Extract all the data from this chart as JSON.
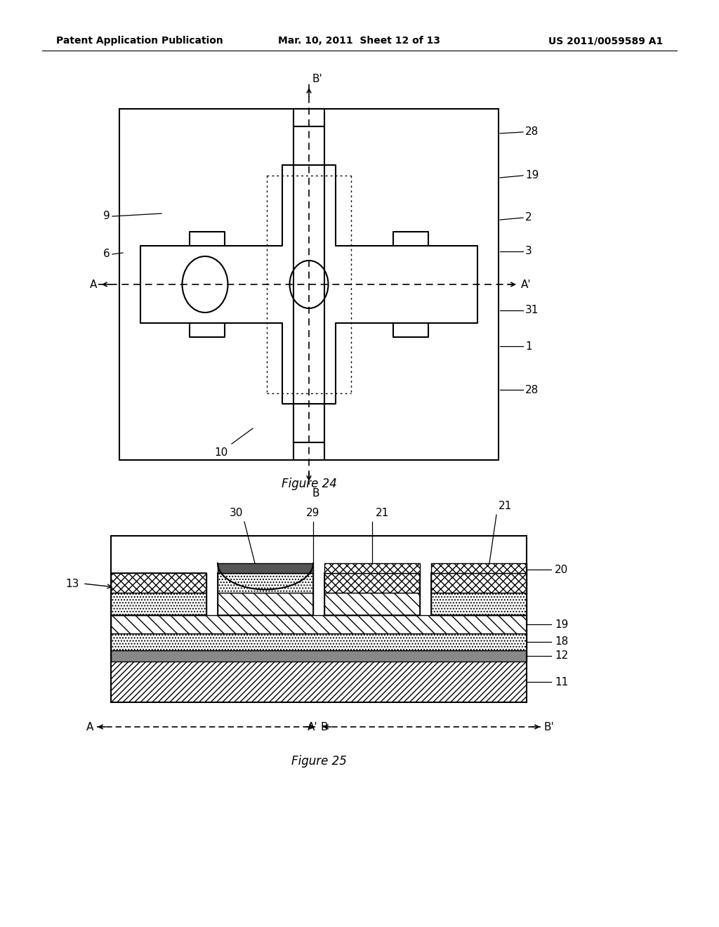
{
  "header_left": "Patent Application Publication",
  "header_mid": "Mar. 10, 2011  Sheet 12 of 13",
  "header_right": "US 2011/0059589 A1",
  "fig24_label": "Figure 24",
  "fig25_label": "Figure 25",
  "bg_color": "#ffffff",
  "line_color": "#000000"
}
